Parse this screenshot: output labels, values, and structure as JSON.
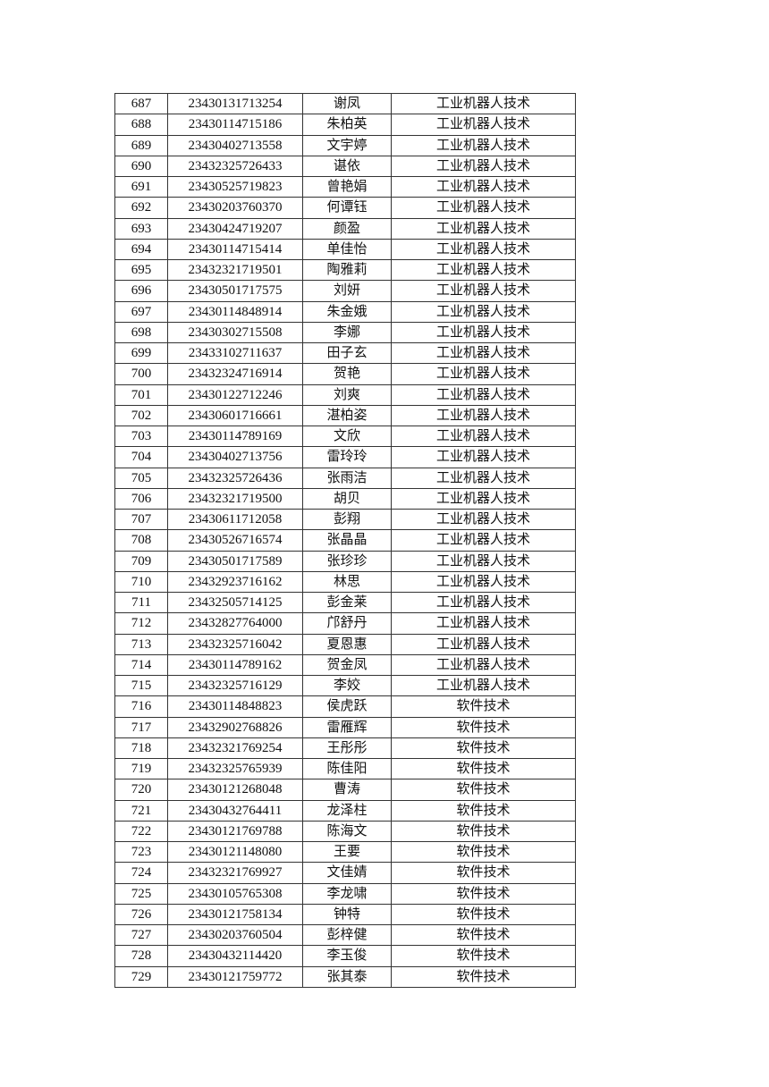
{
  "table": {
    "rows": [
      [
        "687",
        "23430131713254",
        "谢凤",
        "工业机器人技术"
      ],
      [
        "688",
        "23430114715186",
        "朱柏英",
        "工业机器人技术"
      ],
      [
        "689",
        "23430402713558",
        "文宇婷",
        "工业机器人技术"
      ],
      [
        "690",
        "23432325726433",
        "谌依",
        "工业机器人技术"
      ],
      [
        "691",
        "23430525719823",
        "曾艳娟",
        "工业机器人技术"
      ],
      [
        "692",
        "23430203760370",
        "何谭钰",
        "工业机器人技术"
      ],
      [
        "693",
        "23430424719207",
        "颜盈",
        "工业机器人技术"
      ],
      [
        "694",
        "23430114715414",
        "单佳怡",
        "工业机器人技术"
      ],
      [
        "695",
        "23432321719501",
        "陶雅莉",
        "工业机器人技术"
      ],
      [
        "696",
        "23430501717575",
        "刘妍",
        "工业机器人技术"
      ],
      [
        "697",
        "23430114848914",
        "朱金娥",
        "工业机器人技术"
      ],
      [
        "698",
        "23430302715508",
        "李娜",
        "工业机器人技术"
      ],
      [
        "699",
        "23433102711637",
        "田子玄",
        "工业机器人技术"
      ],
      [
        "700",
        "23432324716914",
        "贺艳",
        "工业机器人技术"
      ],
      [
        "701",
        "23430122712246",
        "刘爽",
        "工业机器人技术"
      ],
      [
        "702",
        "23430601716661",
        "湛柏姿",
        "工业机器人技术"
      ],
      [
        "703",
        "23430114789169",
        "文欣",
        "工业机器人技术"
      ],
      [
        "704",
        "23430402713756",
        "雷玲玲",
        "工业机器人技术"
      ],
      [
        "705",
        "23432325726436",
        "张雨洁",
        "工业机器人技术"
      ],
      [
        "706",
        "23432321719500",
        "胡贝",
        "工业机器人技术"
      ],
      [
        "707",
        "23430611712058",
        "彭翔",
        "工业机器人技术"
      ],
      [
        "708",
        "23430526716574",
        "张晶晶",
        "工业机器人技术"
      ],
      [
        "709",
        "23430501717589",
        "张珍珍",
        "工业机器人技术"
      ],
      [
        "710",
        "23432923716162",
        "林思",
        "工业机器人技术"
      ],
      [
        "711",
        "23432505714125",
        "彭金莱",
        "工业机器人技术"
      ],
      [
        "712",
        "23432827764000",
        "邝舒丹",
        "工业机器人技术"
      ],
      [
        "713",
        "23432325716042",
        "夏恩惠",
        "工业机器人技术"
      ],
      [
        "714",
        "23430114789162",
        "贺金凤",
        "工业机器人技术"
      ],
      [
        "715",
        "23432325716129",
        "李姣",
        "工业机器人技术"
      ],
      [
        "716",
        "23430114848823",
        "侯虎跃",
        "软件技术"
      ],
      [
        "717",
        "23432902768826",
        "雷雁辉",
        "软件技术"
      ],
      [
        "718",
        "23432321769254",
        "王彤彤",
        "软件技术"
      ],
      [
        "719",
        "23432325765939",
        "陈佳阳",
        "软件技术"
      ],
      [
        "720",
        "23430121268048",
        "曹涛",
        "软件技术"
      ],
      [
        "721",
        "23430432764411",
        "龙泽柱",
        "软件技术"
      ],
      [
        "722",
        "23430121769788",
        "陈海文",
        "软件技术"
      ],
      [
        "723",
        "23430121148080",
        "王要",
        "软件技术"
      ],
      [
        "724",
        "23432321769927",
        "文佳婧",
        "软件技术"
      ],
      [
        "725",
        "23430105765308",
        "李龙啸",
        "软件技术"
      ],
      [
        "726",
        "23430121758134",
        "钟特",
        "软件技术"
      ],
      [
        "727",
        "23430203760504",
        "彭梓健",
        "软件技术"
      ],
      [
        "728",
        "23430432114420",
        "李玉俊",
        "软件技术"
      ],
      [
        "729",
        "23430121759772",
        "张其泰",
        "软件技术"
      ]
    ]
  }
}
